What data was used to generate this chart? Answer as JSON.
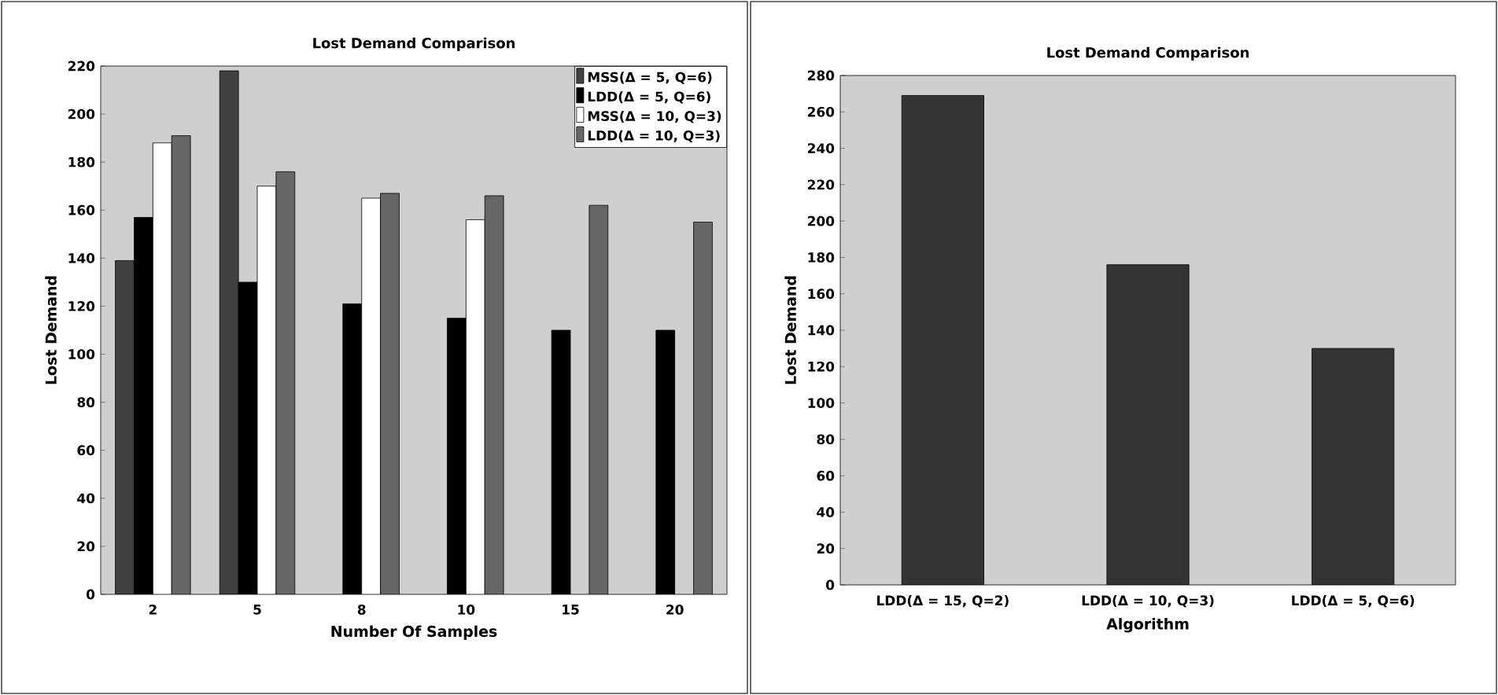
{
  "chart_data": [
    {
      "type": "bar",
      "title": "Lost Demand Comparison",
      "xlabel": "Number Of Samples",
      "ylabel": "Lost Demand",
      "categories": [
        "2",
        "5",
        "8",
        "10",
        "15",
        "20"
      ],
      "series": [
        {
          "name": "MSS(Δ = 5, Q=6)",
          "color": "#404040",
          "values": [
            139,
            218,
            null,
            null,
            null,
            null
          ]
        },
        {
          "name": "LDD(Δ = 5, Q=6)",
          "color": "#000000",
          "values": [
            157,
            130,
            121,
            115,
            110,
            110
          ]
        },
        {
          "name": "MSS(Δ = 10, Q=3)",
          "color": "#ffffff",
          "values": [
            188,
            170,
            165,
            156,
            null,
            null
          ]
        },
        {
          "name": "LDD(Δ = 10, Q=3)",
          "color": "#666666",
          "values": [
            191,
            176,
            167,
            166,
            162,
            155
          ]
        }
      ],
      "ylim": [
        0,
        220
      ],
      "yticks": [
        0,
        20,
        40,
        60,
        80,
        100,
        120,
        140,
        160,
        180,
        200,
        220
      ],
      "legend": "top right"
    },
    {
      "type": "bar",
      "title": "Lost Demand Comparison",
      "xlabel": "Algorithm",
      "ylabel": "Lost Demand",
      "categories": [
        "LDD(Δ = 15, Q=2)",
        "LDD(Δ = 10, Q=3)",
        "LDD(Δ = 5, Q=6)"
      ],
      "values": [
        269,
        176,
        130
      ],
      "color": "#333333",
      "ylim": [
        0,
        280
      ],
      "yticks": [
        0,
        20,
        40,
        60,
        80,
        100,
        120,
        140,
        160,
        180,
        200,
        220,
        240,
        260,
        280
      ]
    }
  ]
}
